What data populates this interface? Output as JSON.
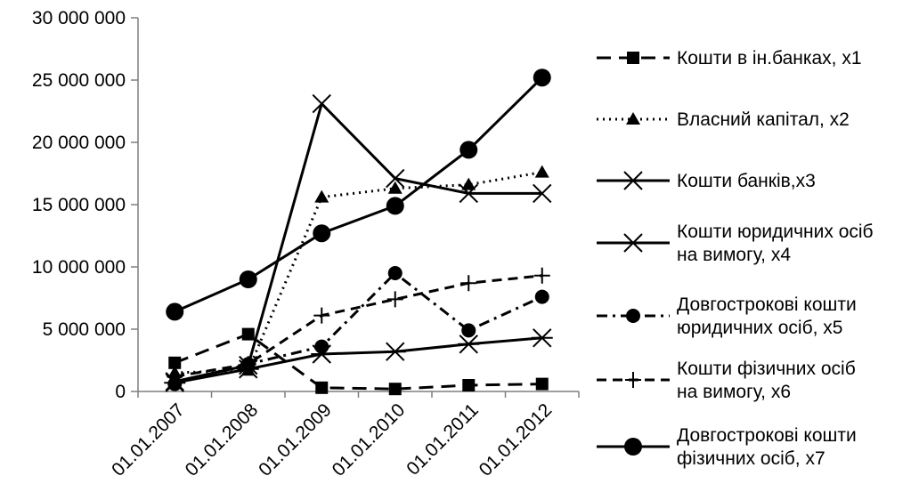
{
  "chart_data": {
    "type": "line",
    "title": "",
    "xlabel": "",
    "ylabel": "",
    "categories": [
      "01.01.2007",
      "01.01.2008",
      "01.01.2009",
      "01.01.2010",
      "01.01.2011",
      "01.01.2012"
    ],
    "ylim": [
      0,
      30000000
    ],
    "yticks": [
      {
        "value": 0,
        "label": "0"
      },
      {
        "value": 5000000,
        "label": "5 000 000"
      },
      {
        "value": 10000000,
        "label": "10 000 000"
      },
      {
        "value": 15000000,
        "label": "15 000 000"
      },
      {
        "value": 20000000,
        "label": "20 000 000"
      },
      {
        "value": 25000000,
        "label": "25 000 000"
      },
      {
        "value": 30000000,
        "label": "30 000 000"
      }
    ],
    "grid": false,
    "legend_position": "right",
    "color": "#000000",
    "series": [
      {
        "name": [
          "Кошти в ін.банках, x1"
        ],
        "marker": "square",
        "dash": "long-dash",
        "values": [
          2300000,
          4600000,
          300000,
          200000,
          500000,
          600000
        ]
      },
      {
        "name": [
          "Власний капітал, x2"
        ],
        "marker": "triangle",
        "dash": "dotted",
        "values": [
          1500000,
          1700000,
          15600000,
          16300000,
          16600000,
          17600000
        ]
      },
      {
        "name": [
          "Кошти банків,x3"
        ],
        "marker": "x",
        "dash": "solid",
        "values": [
          800000,
          2100000,
          23100000,
          17100000,
          15900000,
          15900000
        ]
      },
      {
        "name": [
          "Кошти юридичних осіб",
          "на вимогу, x4"
        ],
        "marker": "star",
        "dash": "solid",
        "values": [
          700000,
          1800000,
          3000000,
          3200000,
          3800000,
          4300000
        ]
      },
      {
        "name": [
          "Довгострокові кошти",
          "юридичних осіб, x5"
        ],
        "marker": "circle",
        "dash": "dash-dot",
        "values": [
          600000,
          2200000,
          3600000,
          9500000,
          4900000,
          7600000
        ]
      },
      {
        "name": [
          "Кошти фізичних осіб",
          "на вимогу, x6"
        ],
        "marker": "plus",
        "dash": "dashed",
        "values": [
          1200000,
          2200000,
          6100000,
          7400000,
          8700000,
          9300000
        ]
      },
      {
        "name": [
          "Довгострокові кошти",
          "фізичних осіб, x7"
        ],
        "marker": "big-circle",
        "dash": "solid",
        "values": [
          6400000,
          9000000,
          12700000,
          14900000,
          19400000,
          25200000
        ]
      }
    ]
  }
}
